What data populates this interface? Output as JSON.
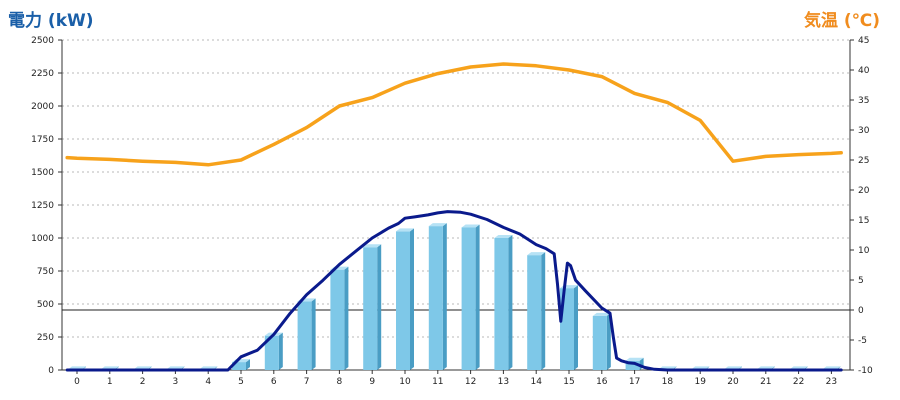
{
  "chart_data": {
    "type": "bar+line",
    "left_axis_title": "電力 (kW)",
    "right_axis_title": "気温 (℃)",
    "left_axis_color": "#1a5fa8",
    "right_axis_color": "#f08c1e",
    "x_categories": [
      "0",
      "1",
      "2",
      "3",
      "4",
      "5",
      "6",
      "7",
      "8",
      "9",
      "10",
      "11",
      "12",
      "13",
      "14",
      "15",
      "16",
      "17",
      "18",
      "19",
      "20",
      "21",
      "22",
      "23"
    ],
    "left_ylim": [
      0,
      2500
    ],
    "left_ticks": [
      "0",
      "250",
      "500",
      "750",
      "1000",
      "1250",
      "1500",
      "1750",
      "2000",
      "2250",
      "2500"
    ],
    "right_ylim": [
      -10,
      45
    ],
    "right_ticks": [
      "-10",
      "-5",
      "0",
      "5",
      "10",
      "15",
      "20",
      "25",
      "30",
      "35",
      "40",
      "45"
    ],
    "grid": true,
    "reference_line_right_axis": 0,
    "series": [
      {
        "type": "bar",
        "axis": "left",
        "color": "#7ec8e8",
        "values": [
          5,
          5,
          5,
          5,
          5,
          60,
          260,
          520,
          760,
          930,
          1050,
          1090,
          1080,
          1000,
          870,
          620,
          410,
          70,
          5,
          5,
          5,
          5,
          5,
          5
        ]
      },
      {
        "type": "line",
        "axis": "left",
        "color": "#0a1a8c",
        "points": [
          [
            -0.3,
            0
          ],
          [
            4.6,
            0
          ],
          [
            5.0,
            100
          ],
          [
            5.5,
            150
          ],
          [
            6.0,
            270
          ],
          [
            6.5,
            430
          ],
          [
            7.0,
            570
          ],
          [
            7.5,
            680
          ],
          [
            8.0,
            800
          ],
          [
            8.5,
            900
          ],
          [
            9.0,
            1000
          ],
          [
            9.5,
            1075
          ],
          [
            9.8,
            1110
          ],
          [
            10.0,
            1150
          ],
          [
            10.3,
            1160
          ],
          [
            10.7,
            1175
          ],
          [
            11.0,
            1190
          ],
          [
            11.3,
            1200
          ],
          [
            11.7,
            1195
          ],
          [
            12.0,
            1180
          ],
          [
            12.5,
            1140
          ],
          [
            13.0,
            1080
          ],
          [
            13.5,
            1030
          ],
          [
            14.0,
            950
          ],
          [
            14.3,
            920
          ],
          [
            14.55,
            880
          ],
          [
            14.65,
            650
          ],
          [
            14.75,
            370
          ],
          [
            14.85,
            600
          ],
          [
            14.95,
            810
          ],
          [
            15.05,
            790
          ],
          [
            15.2,
            680
          ],
          [
            15.5,
            600
          ],
          [
            16.0,
            470
          ],
          [
            16.25,
            430
          ],
          [
            16.35,
            250
          ],
          [
            16.45,
            90
          ],
          [
            16.6,
            70
          ],
          [
            16.8,
            55
          ],
          [
            17.0,
            50
          ],
          [
            17.3,
            20
          ],
          [
            17.6,
            5
          ],
          [
            18.0,
            0
          ],
          [
            23.3,
            0
          ]
        ]
      },
      {
        "type": "line",
        "axis": "right",
        "color": "#f7a21b",
        "points": [
          [
            -0.3,
            25.4
          ],
          [
            0,
            25.3
          ],
          [
            1,
            25.1
          ],
          [
            2,
            24.8
          ],
          [
            3,
            24.6
          ],
          [
            4,
            24.2
          ],
          [
            5,
            25.0
          ],
          [
            6,
            27.6
          ],
          [
            7,
            30.4
          ],
          [
            8,
            34.0
          ],
          [
            9,
            35.4
          ],
          [
            10,
            37.8
          ],
          [
            11,
            39.4
          ],
          [
            12,
            40.5
          ],
          [
            13,
            41.0
          ],
          [
            14,
            40.7
          ],
          [
            15,
            40.0
          ],
          [
            16,
            38.9
          ],
          [
            17,
            36.1
          ],
          [
            18,
            34.6
          ],
          [
            19,
            31.6
          ],
          [
            20,
            24.8
          ],
          [
            21,
            25.6
          ],
          [
            22,
            25.9
          ],
          [
            23,
            26.1
          ],
          [
            23.3,
            26.2
          ]
        ]
      }
    ]
  }
}
